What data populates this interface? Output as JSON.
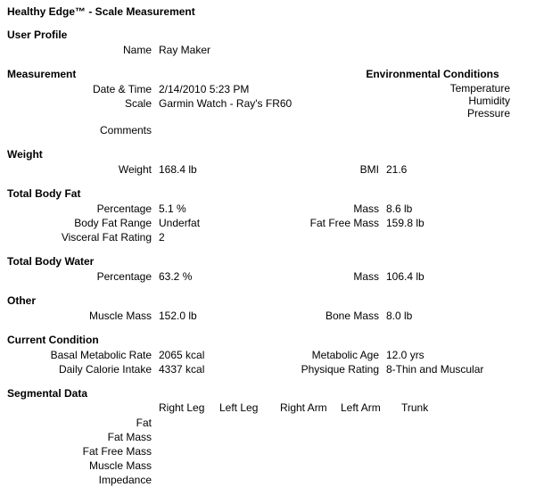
{
  "title": "Healthy Edge™ - Scale Measurement",
  "userProfile": {
    "header": "User Profile",
    "nameLabel": "Name",
    "name": "Ray Maker"
  },
  "measurement": {
    "header": "Measurement",
    "dateTimeLabel": "Date & Time",
    "dateTime": "2/14/2010 5:23 PM",
    "scaleLabel": "Scale",
    "scale": "Garmin Watch - Ray's FR60",
    "commentsLabel": "Comments",
    "comments": ""
  },
  "environmental": {
    "header": "Environmental Conditions",
    "temperatureLabel": "Temperature",
    "temperature": "",
    "humidityLabel": "Humidity",
    "humidity": "",
    "pressureLabel": "Pressure",
    "pressure": ""
  },
  "weight": {
    "header": "Weight",
    "weightLabel": "Weight",
    "weight": "168.4 lb",
    "bmiLabel": "BMI",
    "bmi": "21.6"
  },
  "bodyFat": {
    "header": "Total Body Fat",
    "percentageLabel": "Percentage",
    "percentage": "5.1 %",
    "massLabel": "Mass",
    "mass": "8.6 lb",
    "rangeLabel": "Body Fat Range",
    "range": "Underfat",
    "fatFreeMassLabel": "Fat Free Mass",
    "fatFreeMass": "159.8 lb",
    "visceralLabel": "Visceral Fat Rating",
    "visceral": "2"
  },
  "bodyWater": {
    "header": "Total Body Water",
    "percentageLabel": "Percentage",
    "percentage": "63.2 %",
    "massLabel": "Mass",
    "mass": "106.4 lb"
  },
  "other": {
    "header": "Other",
    "muscleMassLabel": "Muscle Mass",
    "muscleMass": "152.0 lb",
    "boneMassLabel": "Bone Mass",
    "boneMass": "8.0 lb"
  },
  "current": {
    "header": "Current Condition",
    "bmrLabel": "Basal Metabolic Rate",
    "bmr": "2065 kcal",
    "metAgeLabel": "Metabolic Age",
    "metAge": "12.0 yrs",
    "dciLabel": "Daily Calorie Intake",
    "dci": "4337 kcal",
    "physiqueLabel": "Physique Rating",
    "physique": "8-Thin and Muscular"
  },
  "segmental": {
    "header": "Segmental Data",
    "columns": [
      "Right Leg",
      "Left Leg",
      "Right Arm",
      "Left Arm",
      "Trunk"
    ],
    "rowLabels": [
      "Fat",
      "Fat Mass",
      "Fat Free Mass",
      "Muscle Mass",
      "Impedance"
    ]
  }
}
